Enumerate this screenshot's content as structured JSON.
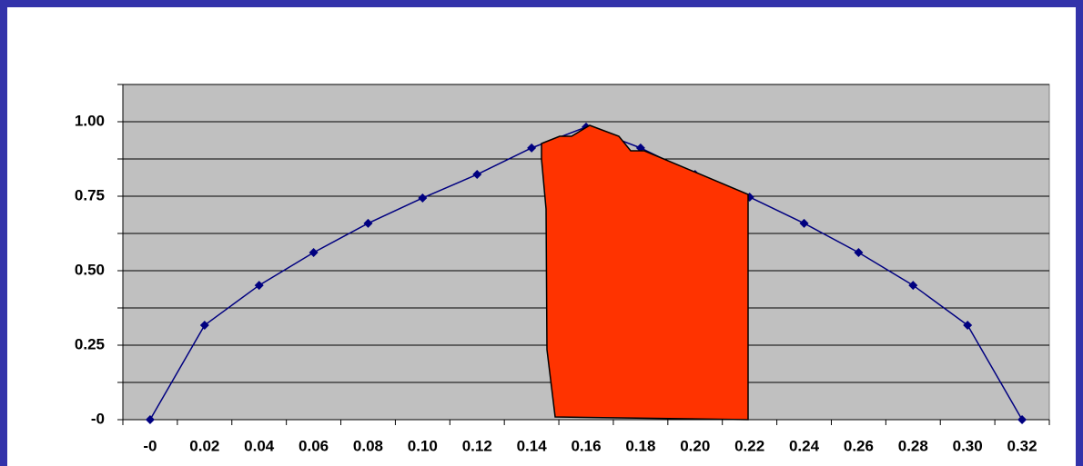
{
  "chart_data": {
    "type": "line",
    "categories": [
      "-0",
      "0.02",
      "0.04",
      "0.06",
      "0.08",
      "0.10",
      "0.12",
      "0.14",
      "0.16",
      "0.18",
      "0.20",
      "0.22",
      "0.24",
      "0.26",
      "0.28",
      "0.30",
      "0.32"
    ],
    "series": [
      {
        "color": "#000080",
        "values": [
          0,
          0.317,
          0.451,
          0.561,
          0.659,
          0.744,
          0.823,
          0.912,
          0.982,
          0.912,
          0.823,
          0.747,
          0.659,
          0.561,
          0.451,
          0.317,
          0
        ]
      }
    ],
    "ylim": [
      0,
      1.125
    ],
    "yticks": [
      {
        "value": 0,
        "label": "-0"
      },
      {
        "value": 0.25,
        "label": "0.25"
      },
      {
        "value": 0.5,
        "label": "0.50"
      },
      {
        "value": 0.75,
        "label": "0.75"
      },
      {
        "value": 1,
        "label": "1.00"
      }
    ],
    "minor_yticks": [
      0.125,
      0.375,
      0.625,
      0.875,
      1.125
    ],
    "grid": true
  }
}
